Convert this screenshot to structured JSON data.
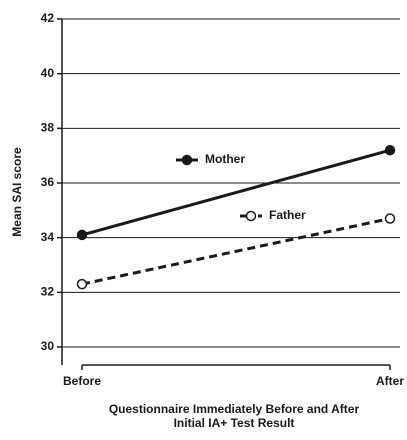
{
  "chart_data": {
    "type": "line",
    "categories": [
      "Before",
      "After"
    ],
    "series": [
      {
        "name": "Mother",
        "color": "#1a1a1a",
        "linestyle": "solid",
        "marker": "filled",
        "values": [
          34.1,
          37.2
        ]
      },
      {
        "name": "Father",
        "color": "#1a1a1a",
        "linestyle": "dashed",
        "marker": "open",
        "values": [
          32.3,
          34.7
        ]
      }
    ],
    "ylabel": "Mean SAI score",
    "xlabel": [
      "Questionnaire Immediately Before and After",
      "Initial IA+ Test Result"
    ],
    "ylim": [
      30,
      42
    ],
    "yticks": [
      30,
      32,
      34,
      36,
      38,
      40,
      42
    ],
    "grid": true,
    "legend": "center"
  }
}
